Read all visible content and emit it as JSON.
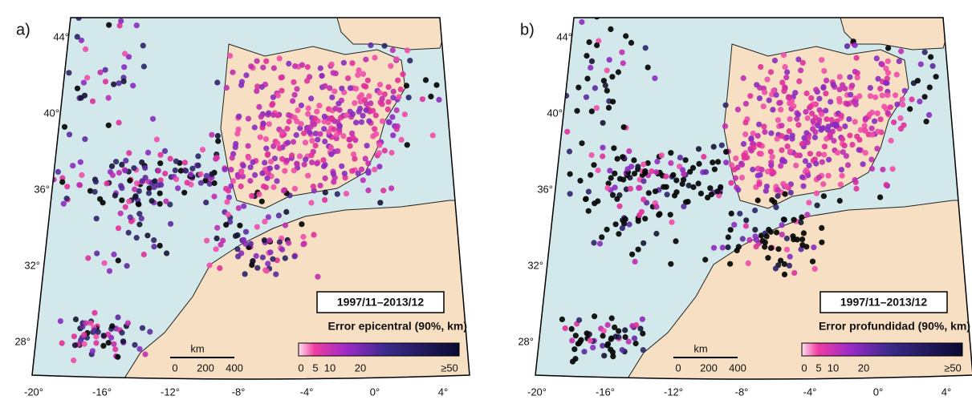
{
  "panels": [
    {
      "label": "a)",
      "lat_labels": [
        "44°",
        "40°",
        "36°",
        "32°",
        "28°"
      ],
      "lon_labels": [
        "-20°",
        "-16°",
        "-12°",
        "-8°",
        "-4°",
        "0°",
        "4°"
      ],
      "date_range": "1997/11–2013/12",
      "colorbar": {
        "title": "Error epicentral (90%, km)",
        "ticks": [
          "0",
          "5",
          "10",
          "20",
          "≥50"
        ]
      },
      "scale": {
        "unit": "km",
        "ticks": [
          "0",
          "200",
          "400"
        ]
      }
    },
    {
      "label": "b)",
      "lat_labels": [
        "44°",
        "40°",
        "36°",
        "32°",
        "28°"
      ],
      "lon_labels": [
        "-20°",
        "-16°",
        "-12°",
        "-8°",
        "-4°",
        "0°",
        "4°"
      ],
      "date_range": "1997/11–2013/12",
      "colorbar": {
        "title": "Error profundidad (90%, km)",
        "ticks": [
          "0",
          "5",
          "10",
          "20",
          "≥50"
        ]
      },
      "scale": {
        "unit": "km",
        "ticks": [
          "0",
          "200",
          "400"
        ]
      }
    }
  ]
}
